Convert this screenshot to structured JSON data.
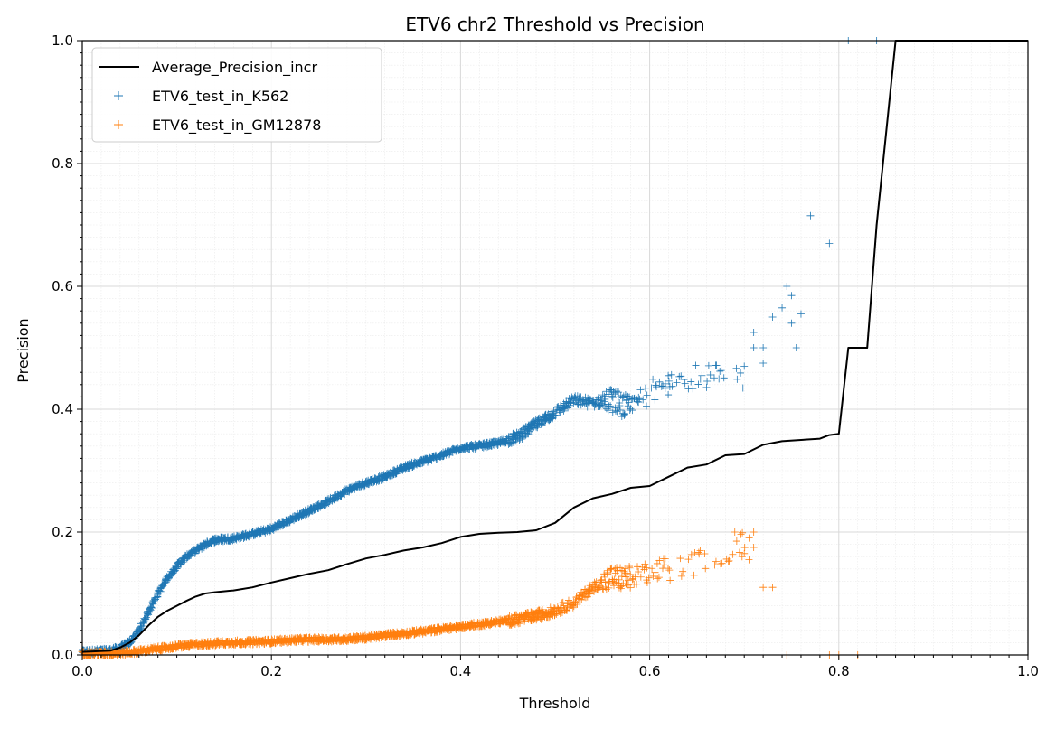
{
  "chart_data": {
    "type": "scatter",
    "title": "ETV6 chr2 Threshold vs Precision",
    "xlabel": "Threshold",
    "ylabel": "Precision",
    "xlim": [
      0.0,
      1.0
    ],
    "ylim": [
      0.0,
      1.0
    ],
    "xticks": [
      "0.0",
      "0.2",
      "0.4",
      "0.6",
      "0.8",
      "1.0"
    ],
    "yticks": [
      "0.0",
      "0.2",
      "0.4",
      "0.6",
      "0.8",
      "1.0"
    ],
    "grid": true,
    "minor_grid": true,
    "legend_position": "top-left",
    "series": [
      {
        "name": "Average_Precision_incr",
        "kind": "line",
        "color": "#000000",
        "points": [
          [
            0.0,
            0.005
          ],
          [
            0.03,
            0.007
          ],
          [
            0.04,
            0.012
          ],
          [
            0.05,
            0.02
          ],
          [
            0.06,
            0.032
          ],
          [
            0.07,
            0.048
          ],
          [
            0.08,
            0.062
          ],
          [
            0.09,
            0.072
          ],
          [
            0.1,
            0.08
          ],
          [
            0.11,
            0.088
          ],
          [
            0.12,
            0.095
          ],
          [
            0.13,
            0.1
          ],
          [
            0.14,
            0.102
          ],
          [
            0.16,
            0.105
          ],
          [
            0.18,
            0.11
          ],
          [
            0.2,
            0.118
          ],
          [
            0.22,
            0.125
          ],
          [
            0.24,
            0.132
          ],
          [
            0.26,
            0.138
          ],
          [
            0.28,
            0.148
          ],
          [
            0.3,
            0.157
          ],
          [
            0.32,
            0.163
          ],
          [
            0.34,
            0.17
          ],
          [
            0.36,
            0.175
          ],
          [
            0.38,
            0.182
          ],
          [
            0.4,
            0.192
          ],
          [
            0.42,
            0.197
          ],
          [
            0.44,
            0.199
          ],
          [
            0.46,
            0.2
          ],
          [
            0.48,
            0.203
          ],
          [
            0.5,
            0.215
          ],
          [
            0.52,
            0.24
          ],
          [
            0.54,
            0.255
          ],
          [
            0.56,
            0.262
          ],
          [
            0.58,
            0.272
          ],
          [
            0.6,
            0.275
          ],
          [
            0.62,
            0.29
          ],
          [
            0.64,
            0.305
          ],
          [
            0.66,
            0.31
          ],
          [
            0.68,
            0.325
          ],
          [
            0.7,
            0.327
          ],
          [
            0.72,
            0.342
          ],
          [
            0.74,
            0.348
          ],
          [
            0.76,
            0.35
          ],
          [
            0.78,
            0.352
          ],
          [
            0.79,
            0.358
          ],
          [
            0.8,
            0.36
          ],
          [
            0.81,
            0.5
          ],
          [
            0.82,
            0.5
          ],
          [
            0.83,
            0.5
          ],
          [
            0.84,
            0.7
          ],
          [
            0.85,
            0.85
          ],
          [
            0.86,
            1.0
          ],
          [
            1.0,
            1.0
          ]
        ]
      },
      {
        "name": "ETV6_test_in_K562",
        "kind": "scatter",
        "marker": "+",
        "color": "#1f77b4",
        "trend": [
          [
            0.0,
            0.005
          ],
          [
            0.03,
            0.007
          ],
          [
            0.04,
            0.012
          ],
          [
            0.05,
            0.02
          ],
          [
            0.06,
            0.04
          ],
          [
            0.07,
            0.07
          ],
          [
            0.08,
            0.1
          ],
          [
            0.09,
            0.125
          ],
          [
            0.1,
            0.145
          ],
          [
            0.11,
            0.16
          ],
          [
            0.12,
            0.17
          ],
          [
            0.13,
            0.18
          ],
          [
            0.14,
            0.187
          ],
          [
            0.16,
            0.19
          ],
          [
            0.18,
            0.197
          ],
          [
            0.2,
            0.205
          ],
          [
            0.22,
            0.22
          ],
          [
            0.24,
            0.235
          ],
          [
            0.26,
            0.25
          ],
          [
            0.28,
            0.268
          ],
          [
            0.3,
            0.28
          ],
          [
            0.32,
            0.29
          ],
          [
            0.34,
            0.305
          ],
          [
            0.36,
            0.315
          ],
          [
            0.38,
            0.325
          ],
          [
            0.4,
            0.337
          ],
          [
            0.42,
            0.34
          ],
          [
            0.44,
            0.345
          ],
          [
            0.46,
            0.355
          ],
          [
            0.48,
            0.375
          ],
          [
            0.5,
            0.395
          ],
          [
            0.52,
            0.415
          ],
          [
            0.54,
            0.41
          ],
          [
            0.56,
            0.415
          ],
          [
            0.58,
            0.4
          ],
          [
            0.6,
            0.43
          ],
          [
            0.62,
            0.44
          ],
          [
            0.64,
            0.45
          ],
          [
            0.66,
            0.455
          ],
          [
            0.68,
            0.45
          ],
          [
            0.7,
            0.45
          ]
        ],
        "outliers": [
          [
            0.7,
            0.47
          ],
          [
            0.71,
            0.5
          ],
          [
            0.71,
            0.525
          ],
          [
            0.72,
            0.475
          ],
          [
            0.72,
            0.5
          ],
          [
            0.73,
            0.55
          ],
          [
            0.74,
            0.565
          ],
          [
            0.745,
            0.6
          ],
          [
            0.75,
            0.585
          ],
          [
            0.75,
            0.54
          ],
          [
            0.755,
            0.5
          ],
          [
            0.76,
            0.555
          ],
          [
            0.77,
            0.715
          ],
          [
            0.79,
            0.67
          ],
          [
            0.81,
            1.0
          ],
          [
            0.815,
            1.0
          ],
          [
            0.84,
            1.0
          ]
        ]
      },
      {
        "name": "ETV6_test_in_GM12878",
        "kind": "scatter",
        "marker": "+",
        "color": "#ff7f0e",
        "trend": [
          [
            0.0,
            0.002
          ],
          [
            0.04,
            0.003
          ],
          [
            0.06,
            0.006
          ],
          [
            0.08,
            0.01
          ],
          [
            0.1,
            0.014
          ],
          [
            0.12,
            0.017
          ],
          [
            0.14,
            0.019
          ],
          [
            0.16,
            0.02
          ],
          [
            0.18,
            0.021
          ],
          [
            0.2,
            0.022
          ],
          [
            0.22,
            0.024
          ],
          [
            0.24,
            0.025
          ],
          [
            0.26,
            0.025
          ],
          [
            0.28,
            0.026
          ],
          [
            0.3,
            0.028
          ],
          [
            0.32,
            0.032
          ],
          [
            0.34,
            0.035
          ],
          [
            0.36,
            0.038
          ],
          [
            0.38,
            0.042
          ],
          [
            0.4,
            0.046
          ],
          [
            0.42,
            0.05
          ],
          [
            0.44,
            0.054
          ],
          [
            0.46,
            0.058
          ],
          [
            0.48,
            0.064
          ],
          [
            0.5,
            0.072
          ],
          [
            0.52,
            0.085
          ],
          [
            0.54,
            0.11
          ],
          [
            0.56,
            0.125
          ],
          [
            0.58,
            0.125
          ],
          [
            0.6,
            0.13
          ],
          [
            0.62,
            0.14
          ],
          [
            0.64,
            0.145
          ],
          [
            0.66,
            0.155
          ],
          [
            0.68,
            0.17
          ],
          [
            0.7,
            0.18
          ],
          [
            0.71,
            0.19
          ]
        ],
        "outliers": [
          [
            0.69,
            0.2
          ],
          [
            0.7,
            0.165
          ],
          [
            0.705,
            0.155
          ],
          [
            0.71,
            0.175
          ],
          [
            0.71,
            0.2
          ],
          [
            0.72,
            0.11
          ],
          [
            0.73,
            0.11
          ],
          [
            0.745,
            0.0
          ],
          [
            0.79,
            0.0
          ],
          [
            0.8,
            0.0
          ],
          [
            0.82,
            0.0
          ]
        ]
      }
    ]
  }
}
